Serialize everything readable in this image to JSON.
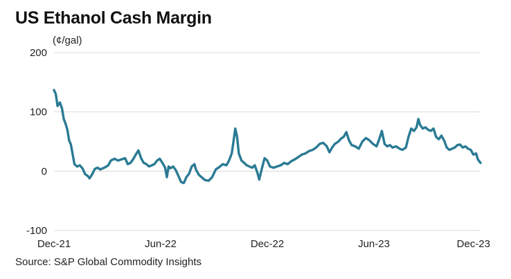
{
  "header": {
    "title": "US Ethanol Cash Margin",
    "unit": "(¢/gal)"
  },
  "footer": {
    "source": "Source: S&P Global Commodity Insights"
  },
  "colors": {
    "line": "#2a7a93",
    "grid": "#d9d9d9",
    "text": "#222222"
  },
  "chart_data": {
    "type": "line",
    "title": "US Ethanol Cash Margin",
    "ylabel": "(¢/gal)",
    "xlabel": "",
    "ylim": [
      -100,
      200
    ],
    "yticks": [
      200,
      100,
      0,
      -100
    ],
    "xlim": [
      0,
      24
    ],
    "x_ticks": [
      {
        "label": "Dec-21",
        "x": 0
      },
      {
        "label": "Jun-22",
        "x": 6
      },
      {
        "label": "Dec-22",
        "x": 12
      },
      {
        "label": "Jun-23",
        "x": 18
      },
      {
        "label": "Dec-23",
        "x": 24
      }
    ],
    "x_unit": "months since Dec-21",
    "grid": true,
    "series": [
      {
        "name": "US Ethanol Cash Margin",
        "points": [
          [
            0.0,
            137
          ],
          [
            0.1,
            130
          ],
          [
            0.2,
            110
          ],
          [
            0.33,
            116
          ],
          [
            0.45,
            106
          ],
          [
            0.55,
            88
          ],
          [
            0.65,
            80
          ],
          [
            0.75,
            70
          ],
          [
            0.85,
            52
          ],
          [
            0.95,
            45
          ],
          [
            1.05,
            28
          ],
          [
            1.15,
            12
          ],
          [
            1.3,
            8
          ],
          [
            1.45,
            10
          ],
          [
            1.6,
            5
          ],
          [
            1.75,
            -5
          ],
          [
            1.9,
            -8
          ],
          [
            2.0,
            -12
          ],
          [
            2.15,
            -5
          ],
          [
            2.3,
            4
          ],
          [
            2.45,
            6
          ],
          [
            2.6,
            3
          ],
          [
            2.75,
            5
          ],
          [
            2.9,
            7
          ],
          [
            3.05,
            10
          ],
          [
            3.2,
            18
          ],
          [
            3.4,
            21
          ],
          [
            3.6,
            18
          ],
          [
            3.8,
            20
          ],
          [
            4.0,
            22
          ],
          [
            4.15,
            12
          ],
          [
            4.3,
            14
          ],
          [
            4.45,
            20
          ],
          [
            4.6,
            28
          ],
          [
            4.75,
            35
          ],
          [
            4.9,
            22
          ],
          [
            5.05,
            14
          ],
          [
            5.2,
            12
          ],
          [
            5.35,
            8
          ],
          [
            5.5,
            10
          ],
          [
            5.65,
            12
          ],
          [
            5.8,
            18
          ],
          [
            5.95,
            21
          ],
          [
            6.1,
            14
          ],
          [
            6.25,
            6
          ],
          [
            6.35,
            -10
          ],
          [
            6.45,
            8
          ],
          [
            6.55,
            5
          ],
          [
            6.7,
            8
          ],
          [
            6.85,
            2
          ],
          [
            7.0,
            -8
          ],
          [
            7.15,
            -18
          ],
          [
            7.3,
            -20
          ],
          [
            7.45,
            -10
          ],
          [
            7.6,
            -4
          ],
          [
            7.75,
            8
          ],
          [
            7.9,
            12
          ],
          [
            8.0,
            2
          ],
          [
            8.15,
            -6
          ],
          [
            8.3,
            -10
          ],
          [
            8.5,
            -15
          ],
          [
            8.7,
            -16
          ],
          [
            8.9,
            -10
          ],
          [
            9.1,
            3
          ],
          [
            9.3,
            7
          ],
          [
            9.5,
            12
          ],
          [
            9.7,
            10
          ],
          [
            9.85,
            18
          ],
          [
            10.0,
            30
          ],
          [
            10.1,
            50
          ],
          [
            10.2,
            72
          ],
          [
            10.3,
            58
          ],
          [
            10.4,
            30
          ],
          [
            10.55,
            18
          ],
          [
            10.7,
            14
          ],
          [
            10.85,
            10
          ],
          [
            11.0,
            8
          ],
          [
            11.15,
            6
          ],
          [
            11.3,
            10
          ],
          [
            11.45,
            -3
          ],
          [
            11.55,
            -14
          ],
          [
            11.7,
            5
          ],
          [
            11.85,
            22
          ],
          [
            12.0,
            18
          ],
          [
            12.15,
            8
          ],
          [
            12.35,
            6
          ],
          [
            12.55,
            8
          ],
          [
            12.75,
            10
          ],
          [
            12.95,
            14
          ],
          [
            13.15,
            12
          ],
          [
            13.35,
            17
          ],
          [
            13.55,
            20
          ],
          [
            13.75,
            24
          ],
          [
            13.95,
            28
          ],
          [
            14.15,
            30
          ],
          [
            14.35,
            34
          ],
          [
            14.55,
            36
          ],
          [
            14.75,
            40
          ],
          [
            14.95,
            46
          ],
          [
            15.15,
            48
          ],
          [
            15.35,
            42
          ],
          [
            15.5,
            32
          ],
          [
            15.65,
            40
          ],
          [
            15.8,
            46
          ],
          [
            16.0,
            50
          ],
          [
            16.15,
            55
          ],
          [
            16.3,
            58
          ],
          [
            16.45,
            66
          ],
          [
            16.6,
            52
          ],
          [
            16.75,
            44
          ],
          [
            16.95,
            42
          ],
          [
            17.15,
            38
          ],
          [
            17.35,
            50
          ],
          [
            17.55,
            56
          ],
          [
            17.75,
            52
          ],
          [
            17.95,
            46
          ],
          [
            18.15,
            42
          ],
          [
            18.3,
            54
          ],
          [
            18.45,
            68
          ],
          [
            18.6,
            46
          ],
          [
            18.75,
            42
          ],
          [
            18.9,
            44
          ],
          [
            19.05,
            40
          ],
          [
            19.25,
            42
          ],
          [
            19.45,
            38
          ],
          [
            19.6,
            36
          ],
          [
            19.8,
            40
          ],
          [
            19.95,
            58
          ],
          [
            20.1,
            72
          ],
          [
            20.25,
            68
          ],
          [
            20.4,
            74
          ],
          [
            20.5,
            88
          ],
          [
            20.6,
            78
          ],
          [
            20.75,
            72
          ],
          [
            20.9,
            74
          ],
          [
            21.05,
            70
          ],
          [
            21.2,
            68
          ],
          [
            21.35,
            72
          ],
          [
            21.5,
            58
          ],
          [
            21.65,
            54
          ],
          [
            21.8,
            60
          ],
          [
            21.95,
            52
          ],
          [
            22.1,
            40
          ],
          [
            22.25,
            36
          ],
          [
            22.4,
            38
          ],
          [
            22.55,
            40
          ],
          [
            22.7,
            44
          ],
          [
            22.85,
            45
          ],
          [
            23.0,
            40
          ],
          [
            23.15,
            42
          ],
          [
            23.3,
            38
          ],
          [
            23.45,
            36
          ],
          [
            23.6,
            28
          ],
          [
            23.75,
            30
          ],
          [
            23.85,
            20
          ],
          [
            24.0,
            14
          ]
        ]
      }
    ]
  }
}
